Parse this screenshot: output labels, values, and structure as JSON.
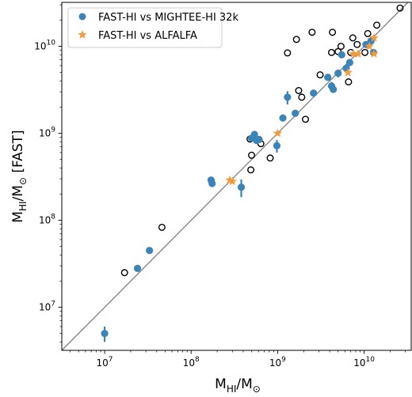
{
  "chart_data": {
    "type": "scatter",
    "xscale": "log",
    "yscale": "log",
    "xlim": [
      3200000.0,
      35000000000.0
    ],
    "ylim": [
      3200000.0,
      32000000000.0
    ],
    "xlabel": "M_HI/M_⊙",
    "ylabel": "M_HI/M_⊙ [FAST]",
    "grid": false,
    "legend_position": "upper-left",
    "x_ticks": [
      {
        "value": 10000000.0,
        "mant": "10",
        "exp": "7"
      },
      {
        "value": 100000000.0,
        "mant": "10",
        "exp": "8"
      },
      {
        "value": 1000000000.0,
        "mant": "10",
        "exp": "9"
      },
      {
        "value": 10000000000.0,
        "mant": "10",
        "exp": "10"
      }
    ],
    "y_ticks": [
      {
        "value": 10000000.0,
        "mant": "10",
        "exp": "7"
      },
      {
        "value": 100000000.0,
        "mant": "10",
        "exp": "8"
      },
      {
        "value": 1000000000.0,
        "mant": "10",
        "exp": "9"
      },
      {
        "value": 10000000000.0,
        "mant": "10",
        "exp": "10"
      }
    ],
    "one_to_one_line": true,
    "series": [
      {
        "name": "FAST-HI vs MIGHTEE-HI 32k",
        "marker": "circle",
        "color": "#3a84b8",
        "points": [
          [
            10000000.0,
            5000000.0,
            1000000.0
          ],
          [
            24000000.0,
            28000000.0,
            0
          ],
          [
            33000000.0,
            45000000.0,
            0
          ],
          [
            170000000.0,
            290000000.0,
            0
          ],
          [
            175000000.0,
            265000000.0,
            0
          ],
          [
            380000000.0,
            240000000.0,
            55000000.0
          ],
          [
            500000000.0,
            880000000.0,
            0
          ],
          [
            540000000.0,
            970000000.0,
            0
          ],
          [
            570000000.0,
            830000000.0,
            0
          ],
          [
            610000000.0,
            850000000.0,
            0
          ],
          [
            980000000.0,
            720000000.0,
            120000000.0
          ],
          [
            1150000000.0,
            1500000000.0,
            0
          ],
          [
            1300000000.0,
            2600000000.0,
            450000000.0
          ],
          [
            1600000000.0,
            1700000000.0,
            0
          ],
          [
            2600000000.0,
            2900000000.0,
            0
          ],
          [
            3800000000.0,
            4400000000.0,
            0
          ],
          [
            4200000000.0,
            3500000000.0,
            400000000.0
          ],
          [
            4400000000.0,
            3200000000.0,
            0
          ],
          [
            5000000000.0,
            4900000000.0,
            500000000.0
          ],
          [
            5500000000.0,
            8000000000.0,
            0
          ],
          [
            6200000000.0,
            5600000000.0,
            0
          ],
          [
            6800000000.0,
            6500000000.0,
            0
          ],
          [
            10500000000.0,
            10500000000.0,
            0
          ],
          [
            12000000000.0,
            11500000000.0,
            0
          ],
          [
            12800000000.0,
            8500000000.0,
            0
          ]
        ]
      },
      {
        "name": "FAST-HI vs ALFALFA",
        "marker": "star",
        "color": "#f39a3e",
        "points": [
          [
            280000000.0,
            290000000.0
          ],
          [
            300000000.0,
            280000000.0
          ],
          [
            1000000000.0,
            1000000000.0
          ],
          [
            6500000000.0,
            5000000000.0
          ],
          [
            7500000000.0,
            8200000000.0
          ],
          [
            8500000000.0,
            8200000000.0
          ],
          [
            11500000000.0,
            10000000000.0
          ],
          [
            13000000000.0,
            12500000000.0
          ],
          [
            13000000000.0,
            8200000000.0
          ]
        ]
      },
      {
        "name": "",
        "marker": "open-circle",
        "color": "#000000",
        "points": [
          [
            17000000.0,
            25000000.0
          ],
          [
            46000000.0,
            83000000.0
          ],
          [
            490000000.0,
            380000000.0
          ],
          [
            500000000.0,
            560000000.0
          ],
          [
            480000000.0,
            860000000.0
          ],
          [
            640000000.0,
            760000000.0
          ],
          [
            820000000.0,
            520000000.0
          ],
          [
            1300000000.0,
            8400000000.0
          ],
          [
            1650000000.0,
            12000000000.0
          ],
          [
            1750000000.0,
            3100000000.0
          ],
          [
            1900000000.0,
            2600000000.0
          ],
          [
            2100000000.0,
            1450000000.0
          ],
          [
            2500000000.0,
            14500000000.0
          ],
          [
            3100000000.0,
            4700000000.0
          ],
          [
            4300000000.0,
            14500000000.0
          ],
          [
            4200000000.0,
            8500000000.0
          ],
          [
            5000000000.0,
            8700000000.0
          ],
          [
            5400000000.0,
            10000000000.0
          ],
          [
            6600000000.0,
            3900000000.0
          ],
          [
            7000000000.0,
            8500000000.0
          ],
          [
            7400000000.0,
            12500000000.0
          ],
          [
            8300000000.0,
            10500000000.0
          ],
          [
            10200000000.0,
            8500000000.0
          ],
          [
            11000000000.0,
            14000000000.0
          ],
          [
            14000000000.0,
            17500000000.0
          ],
          [
            26000000000.0,
            27500000000.0
          ]
        ]
      }
    ]
  },
  "legend": {
    "items": [
      {
        "label": "FAST-HI vs MIGHTEE-HI 32k",
        "color": "#3a84b8",
        "marker": "circle"
      },
      {
        "label": "FAST-HI vs ALFALFA",
        "color": "#f39a3e",
        "marker": "star"
      }
    ]
  }
}
